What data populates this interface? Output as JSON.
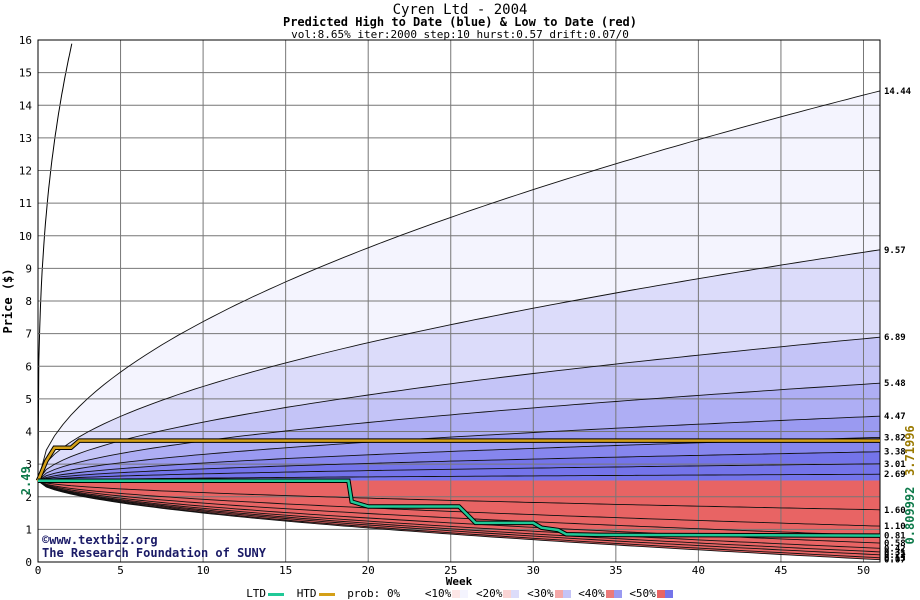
{
  "chart_data": {
    "type": "area",
    "title": "Cyren Ltd - 2004",
    "subtitle": "Predicted High to Date (blue) &  Low to Date (red)",
    "params": "vol:8.65% iter:2000 step:10 hurst:0.57 drift:0.07/0",
    "xlabel": "Week",
    "ylabel": "Price ($)",
    "xlim": [
      0,
      51
    ],
    "ylim": [
      0,
      16
    ],
    "x_ticks": [
      0,
      5,
      10,
      15,
      20,
      25,
      30,
      35,
      40,
      45,
      50
    ],
    "y_ticks": [
      0,
      1,
      2,
      3,
      4,
      5,
      6,
      7,
      8,
      9,
      10,
      11,
      12,
      13,
      14,
      15,
      16
    ],
    "start_price": 2.49,
    "start_label": "2.49",
    "high_bands": [
      {
        "end": 14.44,
        "label": "14.44"
      },
      {
        "end": 9.57,
        "label": "9.57"
      },
      {
        "end": 6.89,
        "label": "6.89"
      },
      {
        "end": 5.48,
        "label": "5.48"
      },
      {
        "end": 4.47,
        "label": "4.47"
      },
      {
        "end": 3.82,
        "label": "3.82"
      },
      {
        "end": 3.38,
        "label": "3.38"
      },
      {
        "end": 3.01,
        "label": "3.01"
      },
      {
        "end": 2.69,
        "label": "2.69"
      }
    ],
    "low_bands": [
      {
        "end": 1.6,
        "label": "1.60"
      },
      {
        "end": 1.1,
        "label": "1.10"
      },
      {
        "end": 0.81,
        "label": "0.81"
      },
      {
        "end": 0.58,
        "label": "0.58"
      },
      {
        "end": 0.42,
        "label": "0.42"
      },
      {
        "end": 0.31,
        "label": "0.31"
      },
      {
        "end": 0.22,
        "label": "0.22"
      },
      {
        "end": 0.13,
        "label": "0.13"
      },
      {
        "end": 0.07,
        "label": "0.07"
      }
    ],
    "htd_series": {
      "color": "#d4a017",
      "end_value": "3.71996",
      "points": [
        [
          0,
          2.49
        ],
        [
          0.5,
          3.1
        ],
        [
          1,
          3.5
        ],
        [
          2,
          3.5
        ],
        [
          2.5,
          3.72
        ],
        [
          51,
          3.72
        ]
      ]
    },
    "ltd_series": {
      "color": "#20c997",
      "end_value": "0.809992",
      "points": [
        [
          0,
          2.49
        ],
        [
          18.8,
          2.49
        ],
        [
          19,
          1.85
        ],
        [
          20,
          1.7
        ],
        [
          25.5,
          1.7
        ],
        [
          26,
          1.45
        ],
        [
          26.5,
          1.2
        ],
        [
          30,
          1.2
        ],
        [
          30.5,
          1.05
        ],
        [
          31.5,
          0.98
        ],
        [
          32,
          0.85
        ],
        [
          34,
          0.83
        ],
        [
          51,
          0.81
        ]
      ]
    },
    "grid": true,
    "legend_position": "bottom"
  },
  "legend": {
    "ltd": "LTD",
    "htd": "HTD",
    "prob": "prob:",
    "items": [
      "0%",
      "<10%",
      "<20%",
      "<30%",
      "<40%",
      "<50%"
    ]
  },
  "watermark": {
    "line1": "©www.textbiz.org",
    "line2": "The Research Foundation of SUNY"
  },
  "colors": {
    "ltd": "#20c997",
    "htd": "#d4a017",
    "blue_bands": [
      "#f4f4fe",
      "#dcdcfa",
      "#c4c4f7",
      "#aeaef4",
      "#9a9af1",
      "#8686ee",
      "#7474ea"
    ],
    "red_bands": [
      "#fde6e6",
      "#fad4d4",
      "#f8c0c0",
      "#f4a8a8",
      "#f09090",
      "#ec7a7a",
      "#e86464"
    ]
  }
}
